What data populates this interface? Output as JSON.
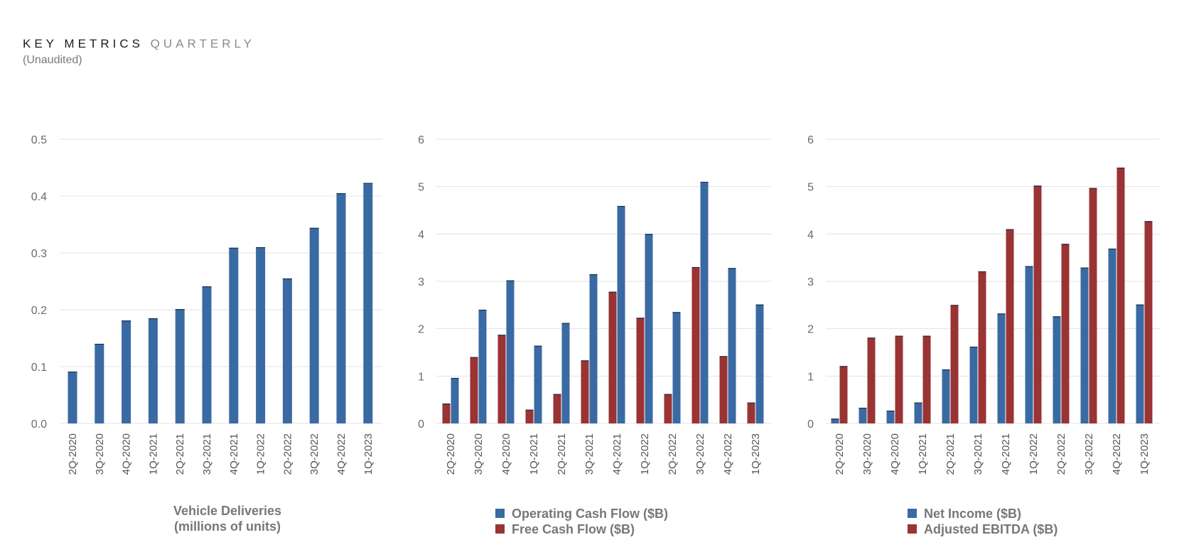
{
  "header": {
    "title_strong": "KEY METRICS",
    "title_light": "QUARTERLY",
    "subtitle": "(Unaudited)"
  },
  "colors": {
    "blue": "#3a6aa3",
    "red": "#9a3333",
    "grid": "#e3e3e3"
  },
  "chart_data": [
    {
      "type": "bar",
      "categories": [
        "2Q-2020",
        "3Q-2020",
        "4Q-2020",
        "1Q-2021",
        "2Q-2021",
        "3Q-2021",
        "4Q-2021",
        "1Q-2022",
        "2Q-2022",
        "3Q-2022",
        "4Q-2022",
        "1Q-2023"
      ],
      "series": [
        {
          "values": [
            0.091,
            0.14,
            0.181,
            0.185,
            0.201,
            0.241,
            0.309,
            0.31,
            0.255,
            0.344,
            0.405,
            0.423
          ],
          "color": "#3a6aa3"
        }
      ],
      "ylim": [
        0,
        0.5
      ],
      "yticks": [
        "0.0",
        "0.1",
        "0.2",
        "0.3",
        "0.4",
        "0.5"
      ],
      "xlabel": [
        "Vehicle Deliveries",
        "(millions of units)"
      ],
      "grid": true
    },
    {
      "type": "bar",
      "categories": [
        "2Q-2020",
        "3Q-2020",
        "4Q-2020",
        "1Q-2021",
        "2Q-2021",
        "3Q-2021",
        "4Q-2021",
        "1Q-2022",
        "2Q-2022",
        "3Q-2022",
        "4Q-2022",
        "1Q-2023"
      ],
      "series": [
        {
          "name": "Free Cash Flow ($B)",
          "values": [
            0.42,
            1.4,
            1.87,
            0.29,
            0.62,
            1.33,
            2.78,
            2.23,
            0.62,
            3.3,
            1.42,
            0.44
          ],
          "color": "#9a3333"
        },
        {
          "name": "Operating Cash Flow ($B)",
          "values": [
            0.96,
            2.4,
            3.02,
            1.64,
            2.12,
            3.15,
            4.59,
            4.0,
            2.35,
            5.1,
            3.28,
            2.51
          ],
          "color": "#3a6aa3"
        }
      ],
      "ylim": [
        0,
        6
      ],
      "yticks": [
        "0",
        "1",
        "2",
        "3",
        "4",
        "5",
        "6"
      ],
      "legend": [
        "Operating Cash Flow ($B)",
        "Free Cash Flow ($B)"
      ],
      "legend_colors": [
        "#3a6aa3",
        "#9a3333"
      ],
      "grid": true
    },
    {
      "type": "bar",
      "categories": [
        "2Q-2020",
        "3Q-2020",
        "4Q-2020",
        "1Q-2021",
        "2Q-2021",
        "3Q-2021",
        "4Q-2021",
        "1Q-2022",
        "2Q-2022",
        "3Q-2022",
        "4Q-2022",
        "1Q-2023"
      ],
      "series": [
        {
          "name": "Net Income ($B)",
          "values": [
            0.1,
            0.33,
            0.27,
            0.44,
            1.14,
            1.62,
            2.32,
            3.32,
            2.26,
            3.29,
            3.69,
            2.51
          ],
          "color": "#3a6aa3"
        },
        {
          "name": "Adjusted EBITDA ($B)",
          "values": [
            1.21,
            1.81,
            1.85,
            1.85,
            2.5,
            3.21,
            4.1,
            5.02,
            3.79,
            4.97,
            5.4,
            4.27
          ],
          "color": "#9a3333"
        }
      ],
      "ylim": [
        0,
        6
      ],
      "yticks": [
        "0",
        "1",
        "2",
        "3",
        "4",
        "5",
        "6"
      ],
      "legend": [
        "Net Income ($B)",
        "Adjusted EBITDA ($B)"
      ],
      "legend_colors": [
        "#3a6aa3",
        "#9a3333"
      ],
      "grid": true
    }
  ]
}
